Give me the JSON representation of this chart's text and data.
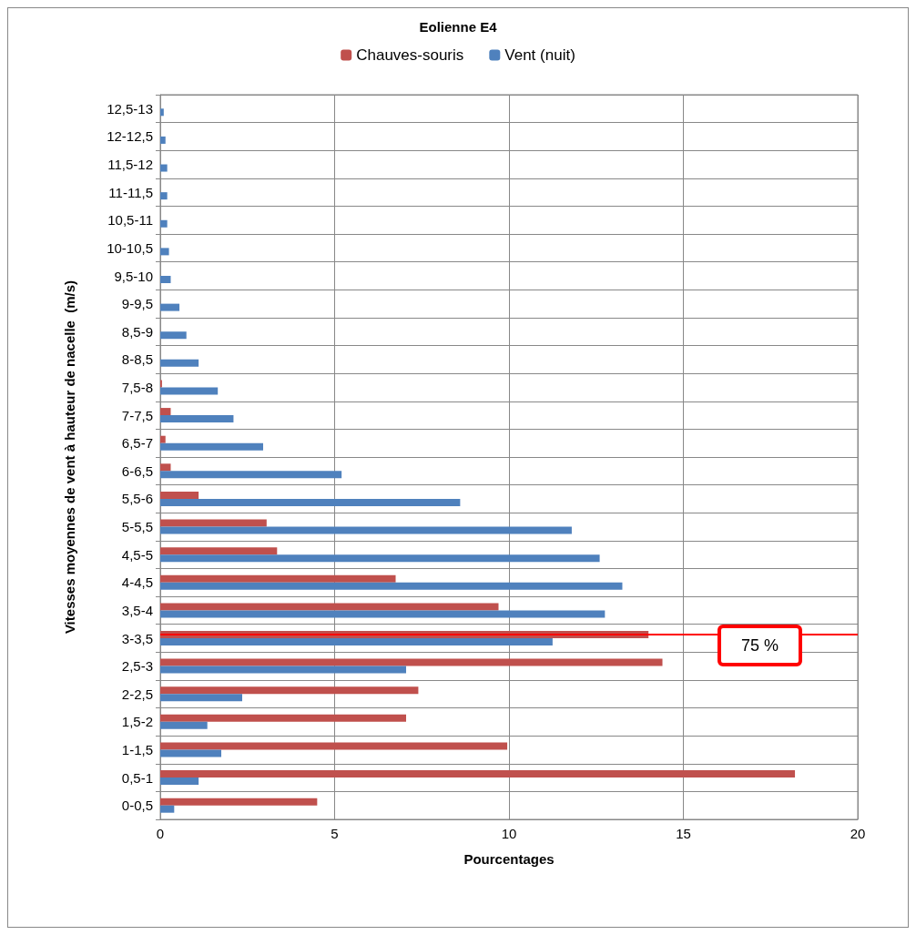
{
  "chart_data": {
    "type": "bar",
    "orientation": "horizontal",
    "title": "Eolienne E4",
    "xlabel": "Pourcentages",
    "ylabel": "Vitesses moyennes de vent à hauteur de nacelle  (m/s)",
    "categories": [
      "12,5-13",
      "12-12,5",
      "11,5-12",
      "11-11,5",
      "10,5-11",
      "10-10,5",
      "9,5-10",
      "9-9,5",
      "8,5-9",
      "8-8,5",
      "7,5-8",
      "7-7,5",
      "6,5-7",
      "6-6,5",
      "5,5-6",
      "5-5,5",
      "4,5-5",
      "4-4,5",
      "3,5-4",
      "3-3,5",
      "2,5-3",
      "2-2,5",
      "1,5-2",
      "1-1,5",
      "0,5-1",
      "0-0,5"
    ],
    "series": [
      {
        "name": "Chauves-souris",
        "color": "#c0504d",
        "values": [
          0,
          0,
          0,
          0,
          0,
          0,
          0,
          0,
          0,
          0,
          0.05,
          0.3,
          0.15,
          0.3,
          1.1,
          3.05,
          3.35,
          6.75,
          9.7,
          14.0,
          14.4,
          7.4,
          7.05,
          9.95,
          18.2,
          4.5
        ]
      },
      {
        "name": "Vent (nuit)",
        "color": "#4f81bd",
        "values": [
          0.1,
          0.15,
          0.2,
          0.2,
          0.2,
          0.25,
          0.3,
          0.55,
          0.75,
          1.1,
          1.65,
          2.1,
          2.95,
          5.2,
          8.6,
          11.8,
          12.6,
          13.25,
          12.75,
          11.25,
          7.05,
          2.35,
          1.35,
          1.75,
          1.1,
          0.4
        ]
      }
    ],
    "xlim": [
      0,
      20
    ],
    "xticks": [
      0,
      5,
      10,
      15,
      20
    ],
    "grid": true,
    "legend": "top",
    "ref_lines": [
      {
        "axis": "y",
        "value": "3-3,5",
        "label": "75 %",
        "color": "#ff0000"
      }
    ]
  }
}
